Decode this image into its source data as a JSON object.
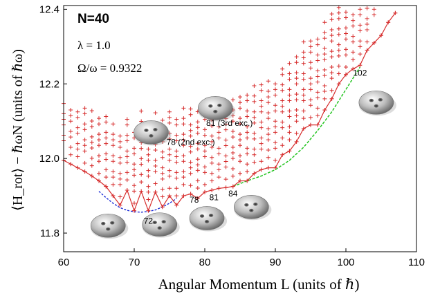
{
  "chart_data": {
    "type": "scatter",
    "title": "",
    "xlabel": "Angular Momentum L  (units of ℏ)",
    "ylabel": "⟨H_rot⟩ − ℏωN  (units of ℏω)",
    "xlim": [
      60,
      110
    ],
    "ylim": [
      11.75,
      12.41
    ],
    "xticks": [
      60,
      70,
      80,
      90,
      100,
      110
    ],
    "yticks": [
      11.8,
      12.0,
      12.2,
      12.4
    ],
    "params": {
      "n": "N=40",
      "lambda": "λ  = 1.0",
      "omega": "Ω/ω  = 0.9322"
    },
    "colors": {
      "levels": "#d62b2b",
      "ground_line": "#d62b2b",
      "blue_fit": "#1a2bd6",
      "green_fit": "#22c41f"
    },
    "labels": [
      {
        "text": "81 (3rd exc.)",
        "x": 83.5,
        "y": 12.087
      },
      {
        "text": "78 (2nd exc.)",
        "x": 78.0,
        "y": 12.036
      },
      {
        "text": "102",
        "x": 102.0,
        "y": 12.222
      },
      {
        "text": "72",
        "x": 72.0,
        "y": 11.825
      },
      {
        "text": "78",
        "x": 78.5,
        "y": 11.882
      },
      {
        "text": "81",
        "x": 81.3,
        "y": 11.888
      },
      {
        "text": "84",
        "x": 84.0,
        "y": 11.898
      }
    ],
    "series": [
      {
        "role": "ground-state line",
        "x": [
          60,
          61,
          62,
          63,
          64,
          65,
          66,
          67,
          68,
          69,
          70,
          71,
          72,
          73,
          74,
          75,
          76,
          77,
          78,
          79,
          80,
          81,
          82,
          83,
          84,
          85,
          86,
          87,
          88,
          89,
          90,
          91,
          92,
          93,
          94,
          95,
          96,
          97,
          98,
          99,
          100,
          101,
          102,
          103,
          104,
          105,
          106,
          107
        ],
        "y": [
          11.995,
          11.985,
          11.975,
          11.965,
          11.953,
          11.94,
          11.925,
          11.9,
          11.875,
          11.915,
          11.86,
          11.912,
          11.86,
          11.91,
          11.87,
          11.9,
          11.875,
          11.9,
          11.905,
          11.893,
          11.91,
          11.915,
          11.92,
          11.922,
          11.925,
          11.94,
          11.94,
          11.96,
          11.97,
          11.975,
          11.975,
          12.01,
          12.02,
          12.045,
          12.08,
          12.09,
          12.09,
          12.13,
          12.16,
          12.2,
          12.225,
          12.24,
          12.25,
          12.29,
          12.31,
          12.33,
          12.365,
          12.39
        ]
      },
      {
        "role": "blue dashed fit",
        "x": [
          65,
          66,
          67,
          68,
          69,
          70,
          71,
          72,
          73,
          74,
          75,
          76
        ],
        "y": [
          11.912,
          11.895,
          11.88,
          11.868,
          11.861,
          11.857,
          11.856,
          11.858,
          11.862,
          11.87,
          11.88,
          11.893
        ]
      },
      {
        "role": "green dashed fit",
        "x": [
          84,
          86,
          88,
          90,
          92,
          94,
          96,
          98,
          100,
          102
        ],
        "y": [
          11.925,
          11.94,
          11.953,
          11.97,
          11.995,
          12.03,
          12.075,
          12.125,
          12.185,
          12.245
        ]
      }
    ],
    "excited_rows": [
      {
        "offset": 0.025,
        "xmin": 61,
        "xmax": 103
      },
      {
        "offset": 0.05,
        "xmin": 60,
        "xmax": 103
      },
      {
        "offset": 0.07,
        "xmin": 60,
        "xmax": 104
      },
      {
        "offset": 0.09,
        "xmin": 60,
        "xmax": 104
      },
      {
        "offset": 0.11,
        "xmin": 60,
        "xmax": 105
      },
      {
        "offset": 0.13,
        "xmin": 60,
        "xmax": 105
      },
      {
        "offset": 0.15,
        "xmin": 60,
        "xmax": 106
      },
      {
        "offset": 0.17,
        "xmin": 63,
        "xmax": 106
      },
      {
        "offset": 0.19,
        "xmin": 66,
        "xmax": 105
      },
      {
        "offset": 0.21,
        "xmin": 70,
        "xmax": 104
      },
      {
        "offset": 0.23,
        "xmin": 74,
        "xmax": 102
      }
    ],
    "thumbnails": [
      {
        "x": 72.4,
        "y": 12.07
      },
      {
        "x": 81.5,
        "y": 12.135
      },
      {
        "x": 104.3,
        "y": 12.15
      },
      {
        "x": 66.3,
        "y": 11.82
      },
      {
        "x": 73.6,
        "y": 11.823
      },
      {
        "x": 80.3,
        "y": 11.84
      },
      {
        "x": 86.6,
        "y": 11.87
      }
    ]
  }
}
